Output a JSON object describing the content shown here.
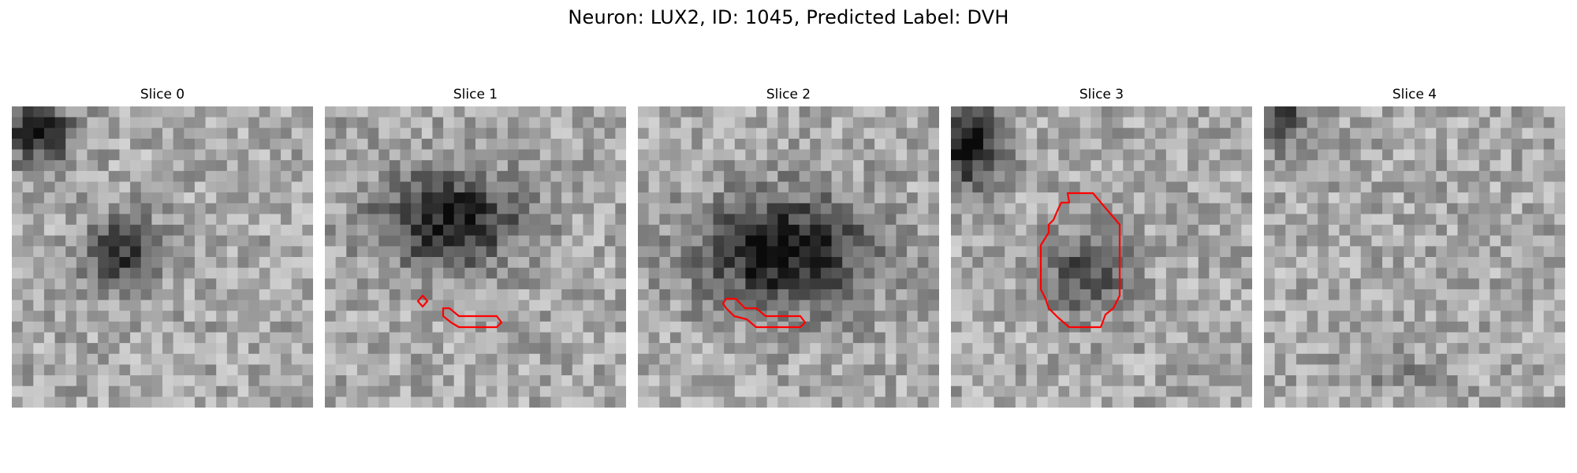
{
  "figure": {
    "title": "Neuron: LUX2, ID: 1045, Predicted Label: DVH"
  },
  "panels": [
    {
      "title": "Slice 0",
      "has_contour": false
    },
    {
      "title": "Slice 1",
      "has_contour": true
    },
    {
      "title": "Slice 2",
      "has_contour": true
    },
    {
      "title": "Slice 3",
      "has_contour": true
    },
    {
      "title": "Slice 4",
      "has_contour": false
    }
  ],
  "style": {
    "contour_color": "#ff0000",
    "colormap": "grayscale"
  }
}
